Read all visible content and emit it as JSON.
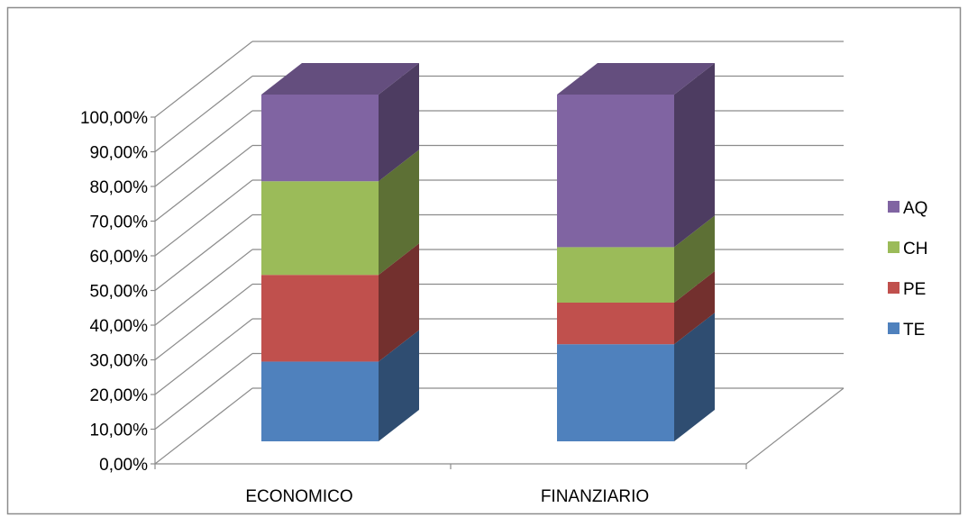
{
  "chart_data": {
    "type": "bar",
    "stacked": true,
    "three_d": true,
    "categories": [
      "ECONOMICO",
      "FINANZIARIO"
    ],
    "series": [
      {
        "name": "TE",
        "values": [
          23.0,
          28.0
        ],
        "color": "#4F81BD"
      },
      {
        "name": "PE",
        "values": [
          25.0,
          12.0
        ],
        "color": "#C0504D"
      },
      {
        "name": "CH",
        "values": [
          27.0,
          16.0
        ],
        "color": "#9BBB59"
      },
      {
        "name": "AQ",
        "values": [
          25.0,
          44.0
        ],
        "color": "#8064A2"
      }
    ],
    "y_ticks": [
      "0,00%",
      "10,00%",
      "20,00%",
      "30,00%",
      "40,00%",
      "50,00%",
      "60,00%",
      "70,00%",
      "80,00%",
      "90,00%",
      "100,00%"
    ],
    "ylim": [
      0,
      100
    ],
    "grid": true,
    "legend_position": "right",
    "legend_order": [
      "AQ",
      "CH",
      "PE",
      "TE"
    ]
  }
}
